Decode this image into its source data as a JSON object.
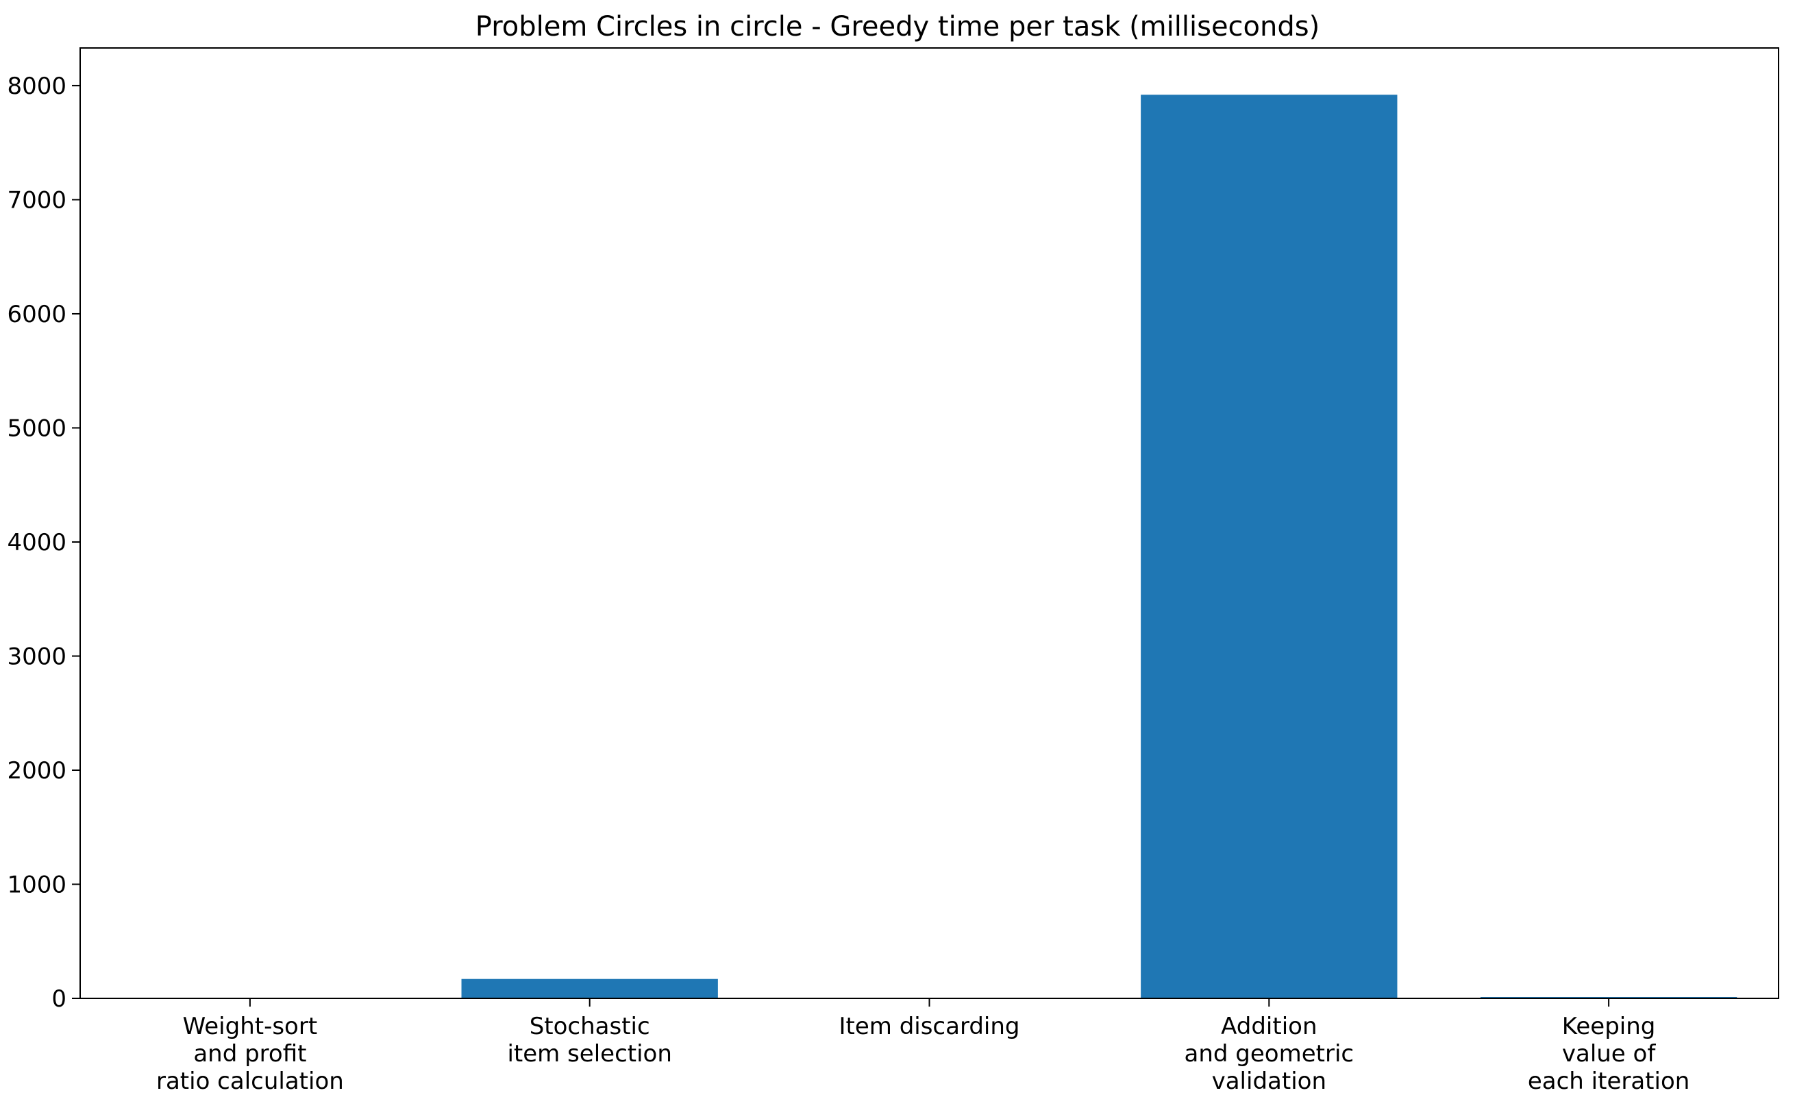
{
  "chart_data": {
    "type": "bar",
    "title": "Problem Circles in circle - Greedy time per task (milliseconds)",
    "xlabel": "",
    "ylabel": "",
    "categories": [
      [
        "Weight-sort",
        "and profit",
        "ratio calculation"
      ],
      [
        "Stochastic",
        "item selection"
      ],
      [
        "Item discarding"
      ],
      [
        "Addition",
        "and geometric",
        "validation"
      ],
      [
        "Keeping",
        "value of",
        "each iteration"
      ]
    ],
    "values": [
      0.3,
      170,
      0.3,
      7920,
      12
    ],
    "ylim": [
      0,
      8330
    ],
    "yticks": [
      0,
      1000,
      2000,
      3000,
      4000,
      5000,
      6000,
      7000,
      8000
    ],
    "grid": false,
    "bar_color": "#1f77b4"
  }
}
